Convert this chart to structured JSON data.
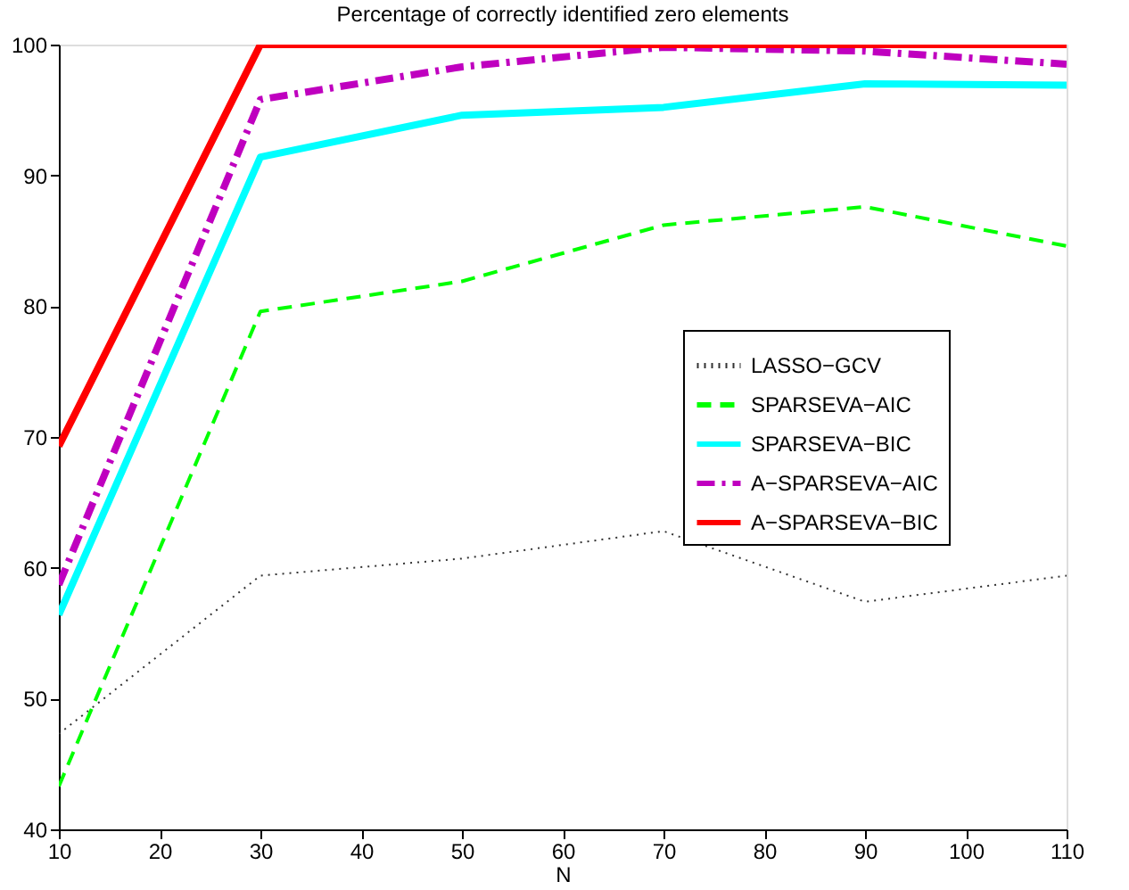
{
  "chart_data": {
    "type": "line",
    "title": "Percentage of correctly identified zero elements",
    "xlabel": "N",
    "x": [
      10,
      30,
      50,
      70,
      90,
      110
    ],
    "series": [
      {
        "name": "LASSO−GCV",
        "color": "#333333",
        "line_style": "dotted",
        "values": [
          47.3,
          59.4,
          60.7,
          62.8,
          57.4,
          59.4
        ]
      },
      {
        "name": "SPARSEVA−AIC",
        "color": "#00ff00",
        "line_style": "dashed",
        "values": [
          43.3,
          79.6,
          81.9,
          86.2,
          87.6,
          84.6
        ]
      },
      {
        "name": "SPARSEVA−BIC",
        "color": "#00ffff",
        "line_style": "solid",
        "values": [
          56.4,
          91.4,
          94.6,
          95.2,
          97.0,
          96.9
        ]
      },
      {
        "name": "A−SPARSEVA−AIC",
        "color": "#bf00bf",
        "line_style": "dashdot",
        "values": [
          58.7,
          95.8,
          98.3,
          99.8,
          99.5,
          98.5
        ]
      },
      {
        "name": "A−SPARSEVA−BIC",
        "color": "#ff0000",
        "line_style": "solid",
        "values": [
          69.3,
          100,
          100,
          100,
          100,
          100
        ]
      }
    ],
    "xlim": [
      10,
      110
    ],
    "xticks": [
      10,
      20,
      30,
      40,
      50,
      60,
      70,
      80,
      90,
      100,
      110
    ],
    "ylim": [
      40,
      100
    ],
    "yticks": [
      40,
      50,
      60,
      70,
      80,
      90,
      100
    ],
    "grid": false,
    "legend": "right",
    "marker": "none"
  }
}
